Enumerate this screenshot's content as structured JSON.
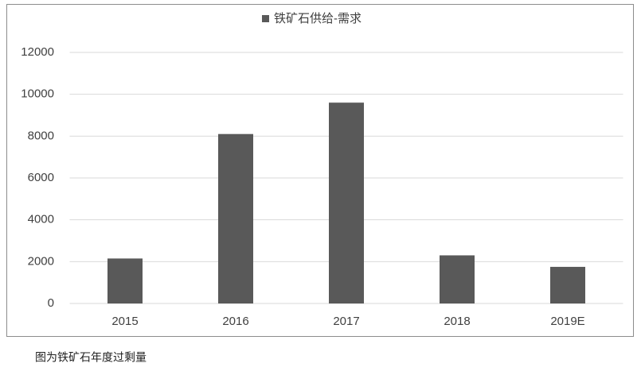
{
  "chart_data": {
    "type": "bar",
    "categories": [
      "2015",
      "2016",
      "2017",
      "2018",
      "2019E"
    ],
    "series": [
      {
        "name": "铁矿石供给-需求",
        "color": "#595959",
        "values": [
          2150,
          8100,
          9600,
          2300,
          1750
        ]
      }
    ],
    "ylim": [
      0,
      12000
    ],
    "yticks": [
      0,
      2000,
      4000,
      6000,
      8000,
      10000,
      12000
    ],
    "grid": true,
    "legend": "top",
    "caption": "图为铁矿石年度过剩量"
  }
}
